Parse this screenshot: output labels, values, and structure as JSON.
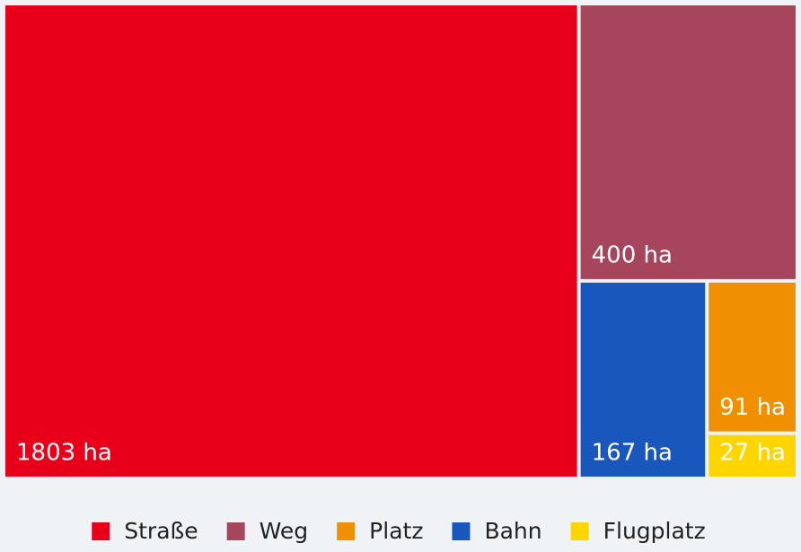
{
  "chart_data": {
    "type": "treemap",
    "categories": [
      "Straße",
      "Weg",
      "Platz",
      "Bahn",
      "Flugplatz"
    ],
    "values": [
      1803,
      400,
      91,
      167,
      27
    ],
    "value_labels": [
      "1803 ha",
      "400 ha",
      "91 ha",
      "167 ha",
      "27 ha"
    ],
    "colors": [
      "#e8001a",
      "#a6455c",
      "#f09000",
      "#1a57bd",
      "#ffd500"
    ]
  }
}
